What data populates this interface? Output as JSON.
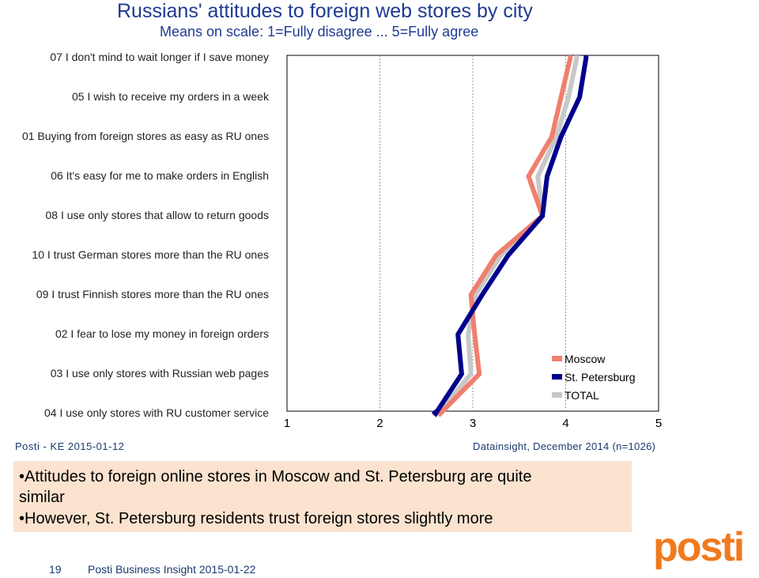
{
  "chart_data": {
    "type": "line",
    "orientation": "horizontal",
    "title": "Russians' attitudes to foreign web stores by city",
    "subtitle": "Means on scale: 1=Fully disagree ... 5=Fully agree",
    "xlim": [
      1,
      5
    ],
    "xticks": [
      "1",
      "2",
      "3",
      "4",
      "5"
    ],
    "grid": "vertical-dashed",
    "legend_placement": "bottom-right",
    "categories": [
      "07 I don't mind to wait longer if I save money",
      "05 I wish to receive my orders in a week",
      "01 Buying from foreign stores as easy as RU ones",
      "06 It's easy for me to make orders in English",
      "08 I use only stores that allow to return goods",
      "10 I trust German stores more than the RU ones",
      "09 I trust Finnish stores more than the RU ones",
      "02 I fear to lose my money in foreign orders",
      "03 I use only stores with Russian web pages",
      "04 I use only stores with RU customer service"
    ],
    "series": [
      {
        "name": "Moscow",
        "color": "#f07f6e",
        "values": [
          4.05,
          3.95,
          3.85,
          3.6,
          3.75,
          3.25,
          2.98,
          3.02,
          3.07,
          2.65
        ]
      },
      {
        "name": "St. Petersburg",
        "color": "#00008b",
        "values": [
          4.22,
          4.15,
          3.95,
          3.8,
          3.75,
          3.38,
          3.1,
          2.84,
          2.88,
          2.6
        ]
      },
      {
        "name": "TOTAL",
        "color": "#c8c8c8",
        "values": [
          4.12,
          4.03,
          3.9,
          3.7,
          3.75,
          3.3,
          3.03,
          2.95,
          2.98,
          2.63
        ]
      }
    ]
  },
  "footer": {
    "source_left": "Posti - KE 2015-01-12",
    "source_right": "Datainsight, December 2014 (n=1026)"
  },
  "notes": {
    "line1": "•Attitudes to foreign online stores in Moscow and St. Petersburg are quite",
    "line2": "similar",
    "line3": "•However, St. Petersburg residents trust foreign stores slightly more"
  },
  "page": {
    "number": "19",
    "title": "Posti Business Insight 2015-01-22"
  },
  "logo": {
    "text": "posti",
    "color": "#f07a1e"
  }
}
